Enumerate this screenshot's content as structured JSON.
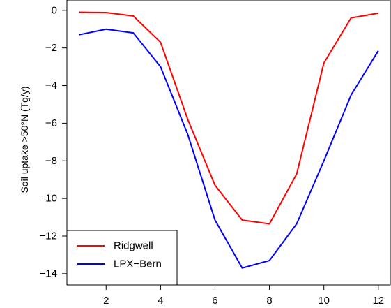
{
  "chart_data": {
    "type": "line",
    "x": [
      1,
      2,
      3,
      4,
      5,
      6,
      7,
      8,
      9,
      10,
      11,
      12
    ],
    "series": [
      {
        "name": "Ridgwell",
        "color": "#ff0000",
        "values": [
          -0.1,
          -0.12,
          -0.3,
          -1.7,
          -5.8,
          -9.3,
          -11.15,
          -11.35,
          -8.7,
          -2.8,
          -0.4,
          -0.15
        ]
      },
      {
        "name": "LPX−Bern",
        "color": "#0000ff",
        "values": [
          -1.3,
          -1.0,
          -1.2,
          -3.0,
          -6.6,
          -11.15,
          -13.7,
          -13.3,
          -11.35,
          -8.0,
          -4.5,
          -2.15
        ]
      }
    ],
    "xticks": [
      2,
      4,
      6,
      8,
      10,
      12
    ],
    "xtick_labels": [
      "2",
      "4",
      "6",
      "8",
      "10",
      "12"
    ],
    "yticks": [
      0,
      -2,
      -4,
      -6,
      -8,
      -10,
      -12,
      -14
    ],
    "ytick_labels": [
      "0",
      "−2",
      "−4",
      "−6",
      "−8",
      "−10",
      "−12",
      "−14"
    ],
    "xlim": [
      0.56,
      12.44
    ],
    "ylim": [
      -14.6,
      0.55
    ],
    "xlabel": "",
    "ylabel": "Soil uptake >50°N (Tg/y)",
    "title": "",
    "legend_position": "bottom-left",
    "grid": false
  }
}
